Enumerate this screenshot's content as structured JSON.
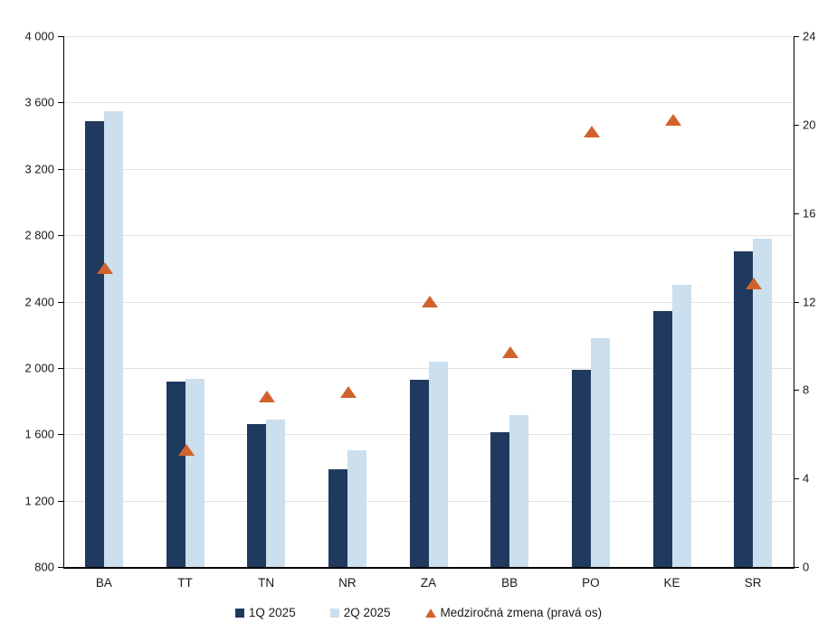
{
  "chart_data": {
    "type": "bar",
    "title": "",
    "categories": [
      "BA",
      "TT",
      "TN",
      "NR",
      "ZA",
      "BB",
      "PO",
      "KE",
      "SR"
    ],
    "series": [
      {
        "name": "1Q 2025",
        "type": "bar",
        "axis": "left",
        "color": "#1F3A5E",
        "values": [
          3490,
          1920,
          1660,
          1390,
          1930,
          1610,
          1990,
          2345,
          2700
        ]
      },
      {
        "name": "2Q 2025",
        "type": "bar",
        "axis": "left",
        "color": "#CBDFEE",
        "values": [
          3545,
          1935,
          1690,
          1505,
          2035,
          1715,
          2180,
          2500,
          2780
        ]
      },
      {
        "name": "Medziročná zmena (pravá os)",
        "type": "scatter-triangle",
        "axis": "right",
        "color": "#D2622C",
        "values": [
          13.5,
          5.3,
          7.7,
          7.9,
          12.0,
          9.7,
          19.7,
          20.2,
          12.8
        ]
      }
    ],
    "left_axis": {
      "min": 800,
      "max": 4000,
      "step": 400,
      "tick_labels": [
        "4 000",
        "3 600",
        "3 200",
        "2 800",
        "2 400",
        "2 000",
        "1 600",
        "1 200",
        "800"
      ]
    },
    "right_axis": {
      "min": 0,
      "max": 24,
      "step": 4,
      "tick_labels": [
        "24",
        "20",
        "16",
        "12",
        "8",
        "4",
        "0"
      ]
    },
    "grid": true,
    "legend_position": "bottom",
    "colors": {
      "grid": "#e2e2e2",
      "axis": "#000000",
      "text": "#1a1a1a",
      "background": "#ffffff"
    }
  }
}
